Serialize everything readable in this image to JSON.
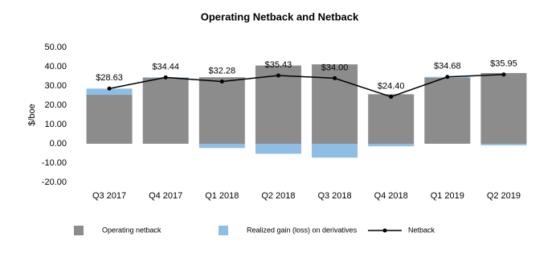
{
  "chart_data": {
    "type": "bar",
    "stacked": true,
    "title": "Operating Netback and Netback",
    "ylabel": "$/boe",
    "categories": [
      "Q3 2017",
      "Q4 2017",
      "Q1 2018",
      "Q2 2018",
      "Q3 2018",
      "Q4 2018",
      "Q1 2019",
      "Q2 2019"
    ],
    "series": [
      {
        "name": "Operating netback",
        "type": "bar",
        "color": "#8c8c8c",
        "values": [
          25.4,
          34.2,
          34.5,
          40.6,
          41.2,
          25.7,
          34.2,
          36.7
        ]
      },
      {
        "name": "Realized gain (loss) on derivatives",
        "type": "bar",
        "color": "#8ebde6",
        "values": [
          3.2,
          0.3,
          -2.2,
          -5.2,
          -7.2,
          -1.3,
          0.5,
          -0.8
        ]
      },
      {
        "name": "Netback",
        "type": "line",
        "color": "#000000",
        "values": [
          28.63,
          34.44,
          32.28,
          35.43,
          34.0,
          24.4,
          34.68,
          35.95
        ],
        "value_labels": [
          "$28.63",
          "$34.44",
          "$32.28",
          "$35.43",
          "$34.00",
          "$24.40",
          "$34.68",
          "$35.95"
        ]
      }
    ],
    "ylim": [
      -20,
      50
    ],
    "yticks": [
      {
        "value": -20,
        "label": "-20.00"
      },
      {
        "value": -10,
        "label": "-10.00"
      },
      {
        "value": 0,
        "label": "0.00"
      },
      {
        "value": 10,
        "label": "10.00"
      },
      {
        "value": 20,
        "label": "20.00"
      },
      {
        "value": 30,
        "label": "30.00"
      },
      {
        "value": 40,
        "label": "40.00"
      },
      {
        "value": 50,
        "label": "50.00"
      }
    ],
    "grid": false
  }
}
